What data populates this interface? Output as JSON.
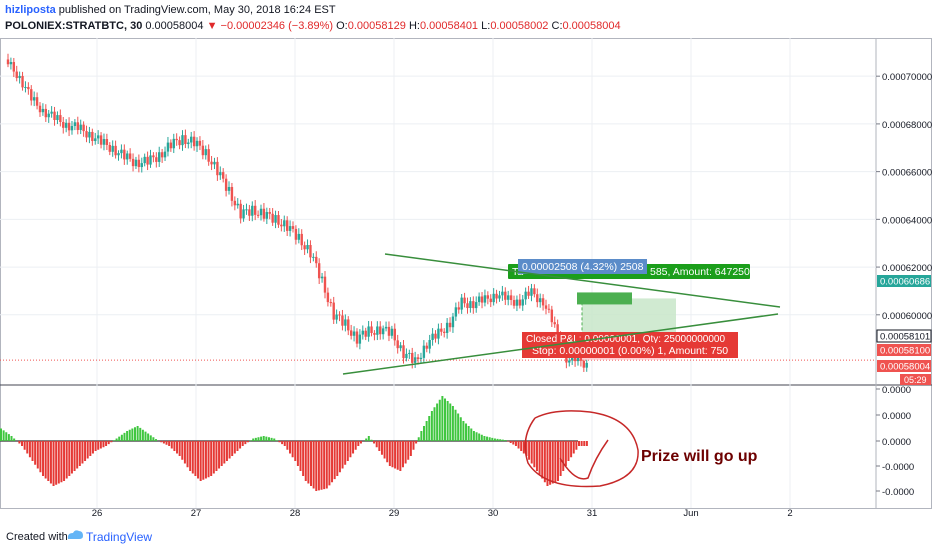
{
  "header": {
    "author": "hizliposta",
    "published": "published on TradingView.com, May 30, 2018 16:24 EST",
    "symbol": "POLONIEX:STRATBTC, 30",
    "last": "0.00058004",
    "change": "−0.00002346 (−3.89%)",
    "o_label": "O:",
    "o_val": "0.00058129",
    "h_label": "H:",
    "h_val": "0.00058401",
    "l_label": "L:",
    "l_val": "0.00058002",
    "c_label": "C:",
    "c_val": "0.00058004"
  },
  "footer": {
    "created": "Created with",
    "brand": "TradingView"
  },
  "colors": {
    "up": "#26a69a",
    "down": "#ef5350",
    "trend": "#388e3c",
    "osc_up": "#3fc63f",
    "osc_down": "#e53935",
    "annot": "#c62828"
  },
  "chart_data": [
    {
      "type": "candlestick",
      "x_axis_ticks": [
        "26",
        "27",
        "28",
        "29",
        "30",
        "31",
        "Jun",
        "2"
      ],
      "y_axis_ticks": [
        "0.00070000",
        "0.00068000",
        "0.00066000",
        "0.00064000",
        "0.00062000",
        "0.00060000"
      ],
      "ylim": [
        0.000571,
        0.000716
      ],
      "price_labels": [
        {
          "text": "0.00060686",
          "value": 0.00060686,
          "color": "#26a69a"
        },
        {
          "text": "0.00058101",
          "value": 0.00058101,
          "color": "#131722"
        },
        {
          "text": "0.00058100",
          "value": 0.000581,
          "color": "#ef5350"
        },
        {
          "text": "0.00058004",
          "value": 0.00058004,
          "color": "#ef5350"
        }
      ],
      "countdown": "05:29",
      "closes": [
        0.000705,
        0.0007,
        0.00069,
        0.000686,
        0.000682,
        0.00068,
        0.000678,
        0.000676,
        0.000672,
        0.00067,
        0.000666,
        0.000664,
        0.000664,
        0.000667,
        0.000671,
        0.000674,
        0.000672,
        0.000668,
        0.00066,
        0.000652,
        0.000642,
        0.000644,
        0.000642,
        0.00064,
        0.000637,
        0.000632,
        0.000626,
        0.000614,
        0.0006,
        0.000596,
        0.00059,
        0.000593,
        0.000594,
        0.000592,
        0.000584,
        0.00058,
        0.000588,
        0.000592,
        0.000597,
        0.000605,
        0.000605,
        0.000606,
        0.000609,
        0.000606,
        0.000606,
        0.000609,
        0.000606,
        0.000594,
        0.000582,
        0.00058
      ],
      "long_position": {
        "entry": 0.000582,
        "target": 0.00060686,
        "target_text": "0.00002508 (4.32%) 2508",
        "target_text2": "585, Amount: 647250",
        "stop_text": "Stop: 0.00000001 (0.00%) 1, Amount: 750",
        "closed_text": "Closed P&L: 0.00000001, Qty: 25000000000"
      },
      "trendlines": [
        {
          "from": [
            "29 -0.5",
            0.000618
          ],
          "to": [
            "Jun +1",
            0.000604
          ]
        },
        {
          "from": [
            "28 +0.5",
            0.000576
          ],
          "to": [
            "Jun +1",
            0.0006
          ]
        }
      ]
    },
    {
      "type": "bar",
      "name": "oscillator",
      "y_axis_ticks": [
        "0.0000",
        "0.0000",
        "0.0000",
        "-0.0000",
        "-0.0000"
      ],
      "values": [
        0.25,
        0.1,
        -0.1,
        -0.4,
        -0.7,
        -0.9,
        -0.8,
        -0.6,
        -0.4,
        -0.2,
        -0.1,
        0.05,
        0.2,
        0.3,
        0.15,
        0.0,
        -0.1,
        -0.3,
        -0.6,
        -0.8,
        -0.7,
        -0.5,
        -0.3,
        -0.1,
        0.05,
        0.1,
        0.05,
        -0.1,
        -0.4,
        -0.8,
        -1.0,
        -0.95,
        -0.7,
        -0.4,
        -0.1,
        0.1,
        -0.2,
        -0.5,
        -0.6,
        -0.3,
        0.2,
        0.6,
        0.9,
        0.7,
        0.4,
        0.2,
        0.1,
        0.05,
        0.02,
        -0.1,
        -0.3,
        -0.6,
        -0.9,
        -0.8,
        -0.4,
        -0.1
      ],
      "annotation": "Prize will go up"
    }
  ]
}
